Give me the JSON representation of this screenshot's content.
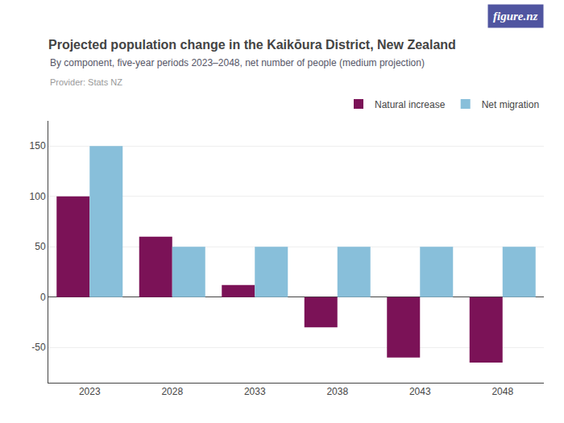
{
  "chart_data": {
    "type": "bar",
    "title": "Projected population change in the Kaikōura District, New Zealand",
    "subtitle": "By component, five-year periods 2023–2048, net number of people (medium projection)",
    "annotations": [
      {
        "text": "Provider: Stats NZ"
      },
      {
        "text": "figure.nz",
        "color": "#5055A0"
      }
    ],
    "categories": [
      2023,
      2028,
      2033,
      2038,
      2043,
      2048
    ],
    "series": [
      {
        "name": "Natural increase",
        "color": "#7B1257",
        "values": [
          100,
          60,
          12,
          -30,
          -60,
          -65
        ]
      },
      {
        "name": "Net migration",
        "color": "#88BFDA",
        "values": [
          150,
          50,
          50,
          50,
          50,
          50
        ]
      }
    ],
    "ylim": [
      -85,
      175
    ],
    "yticks": [
      -50,
      0,
      50,
      100,
      150
    ],
    "grid": true,
    "legend": "top right"
  }
}
